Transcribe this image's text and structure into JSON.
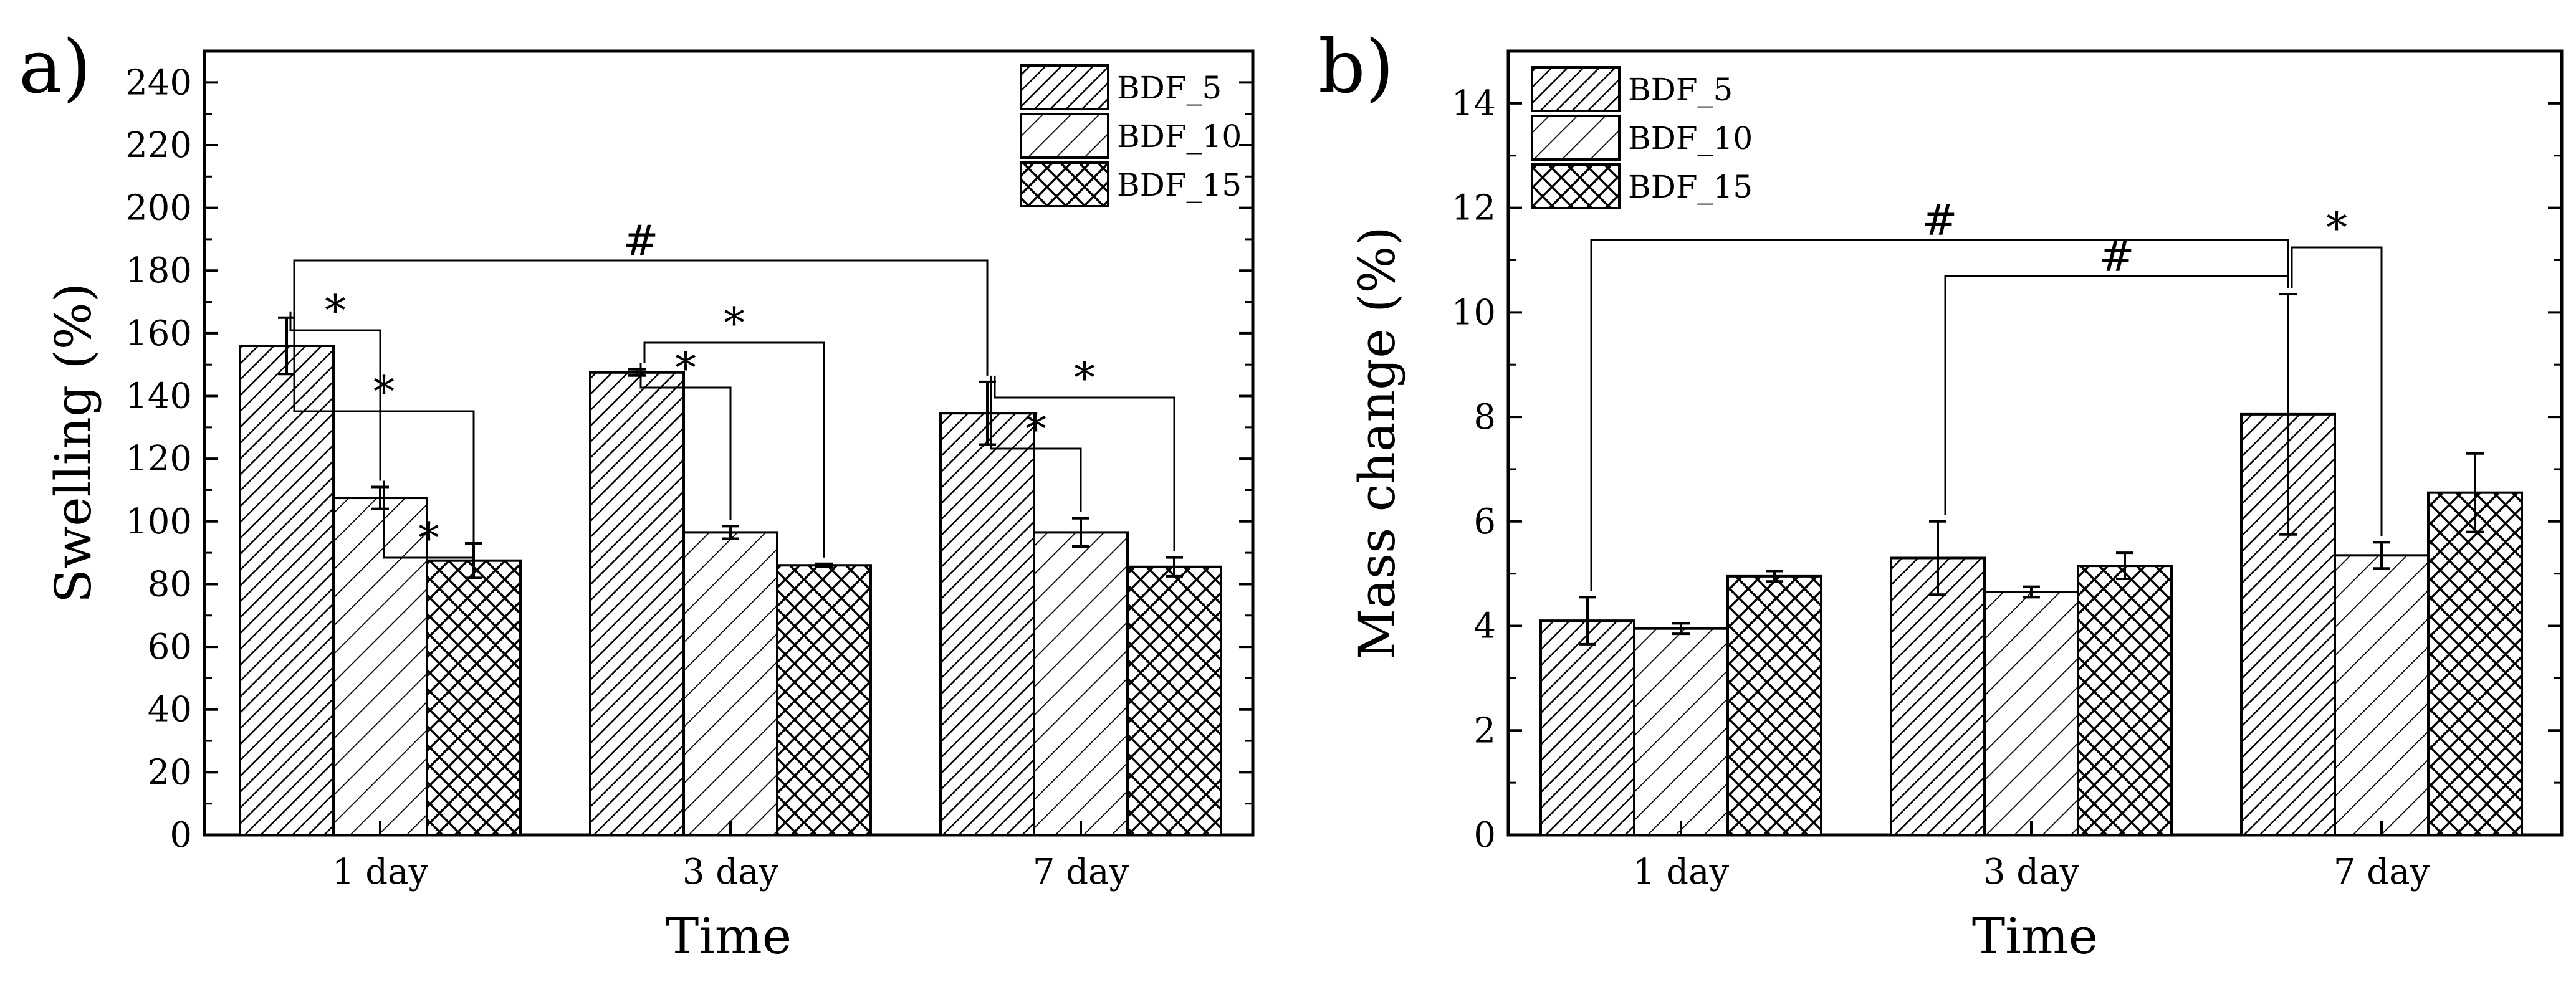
{
  "chart_data": [
    {
      "type": "bar",
      "panel": "a)",
      "xlabel": "Time",
      "ylabel": "Swelling (%)",
      "ylim": [
        0,
        250
      ],
      "yticks": [
        0,
        20,
        40,
        60,
        80,
        100,
        120,
        140,
        160,
        180,
        200,
        220,
        240
      ],
      "categories": [
        "1 day",
        "3 day",
        "7 day"
      ],
      "legend_position": "top-right",
      "series": [
        {
          "name": "BDF_5",
          "values": [
            156,
            147.5,
            134.5
          ],
          "errors": [
            9,
            1,
            10
          ],
          "pattern": "dense-diagonal"
        },
        {
          "name": "BDF_10",
          "values": [
            107.5,
            96.5,
            96.5
          ],
          "errors": [
            3.5,
            2,
            4.5
          ],
          "pattern": "diagonal"
        },
        {
          "name": "BDF_15",
          "values": [
            87.5,
            86,
            85.5
          ],
          "errors": [
            5.5,
            0.5,
            3
          ],
          "pattern": "crosshatch"
        }
      ],
      "significance": [
        {
          "from": [
            0,
            0
          ],
          "to": [
            0,
            1
          ],
          "label": "*"
        },
        {
          "from": [
            0,
            0
          ],
          "to": [
            0,
            2
          ],
          "label": "*"
        },
        {
          "from": [
            0,
            1
          ],
          "to": [
            0,
            2
          ],
          "label": "*"
        },
        {
          "from": [
            0,
            0
          ],
          "to": [
            2,
            0
          ],
          "label": "#"
        },
        {
          "from": [
            1,
            0
          ],
          "to": [
            1,
            1
          ],
          "label": "*"
        },
        {
          "from": [
            1,
            0
          ],
          "to": [
            1,
            2
          ],
          "label": "*"
        },
        {
          "from": [
            2,
            0
          ],
          "to": [
            2,
            1
          ],
          "label": "*"
        },
        {
          "from": [
            2,
            0
          ],
          "to": [
            2,
            2
          ],
          "label": "*"
        }
      ]
    },
    {
      "type": "bar",
      "panel": "b)",
      "xlabel": "Time",
      "ylabel": "Mass change (%)",
      "ylim": [
        0,
        15
      ],
      "yticks": [
        0,
        2,
        4,
        6,
        8,
        10,
        12,
        14
      ],
      "categories": [
        "1 day",
        "3 day",
        "7 day"
      ],
      "legend_position": "top-left",
      "series": [
        {
          "name": "BDF_5",
          "values": [
            4.1,
            5.3,
            8.05
          ],
          "errors": [
            0.45,
            0.7,
            2.3
          ],
          "pattern": "dense-diagonal"
        },
        {
          "name": "BDF_10",
          "values": [
            3.95,
            4.65,
            5.35
          ],
          "errors": [
            0.1,
            0.1,
            0.25
          ],
          "pattern": "diagonal"
        },
        {
          "name": "BDF_15",
          "values": [
            4.95,
            5.15,
            6.55
          ],
          "errors": [
            0.1,
            0.25,
            0.75
          ],
          "pattern": "crosshatch"
        }
      ],
      "significance": [
        {
          "from": [
            0,
            0
          ],
          "to": [
            2,
            0
          ],
          "label": "#"
        },
        {
          "from": [
            1,
            0
          ],
          "to": [
            2,
            0
          ],
          "label": "#"
        },
        {
          "from": [
            2,
            0
          ],
          "to": [
            2,
            1
          ],
          "label": "*"
        }
      ]
    }
  ]
}
